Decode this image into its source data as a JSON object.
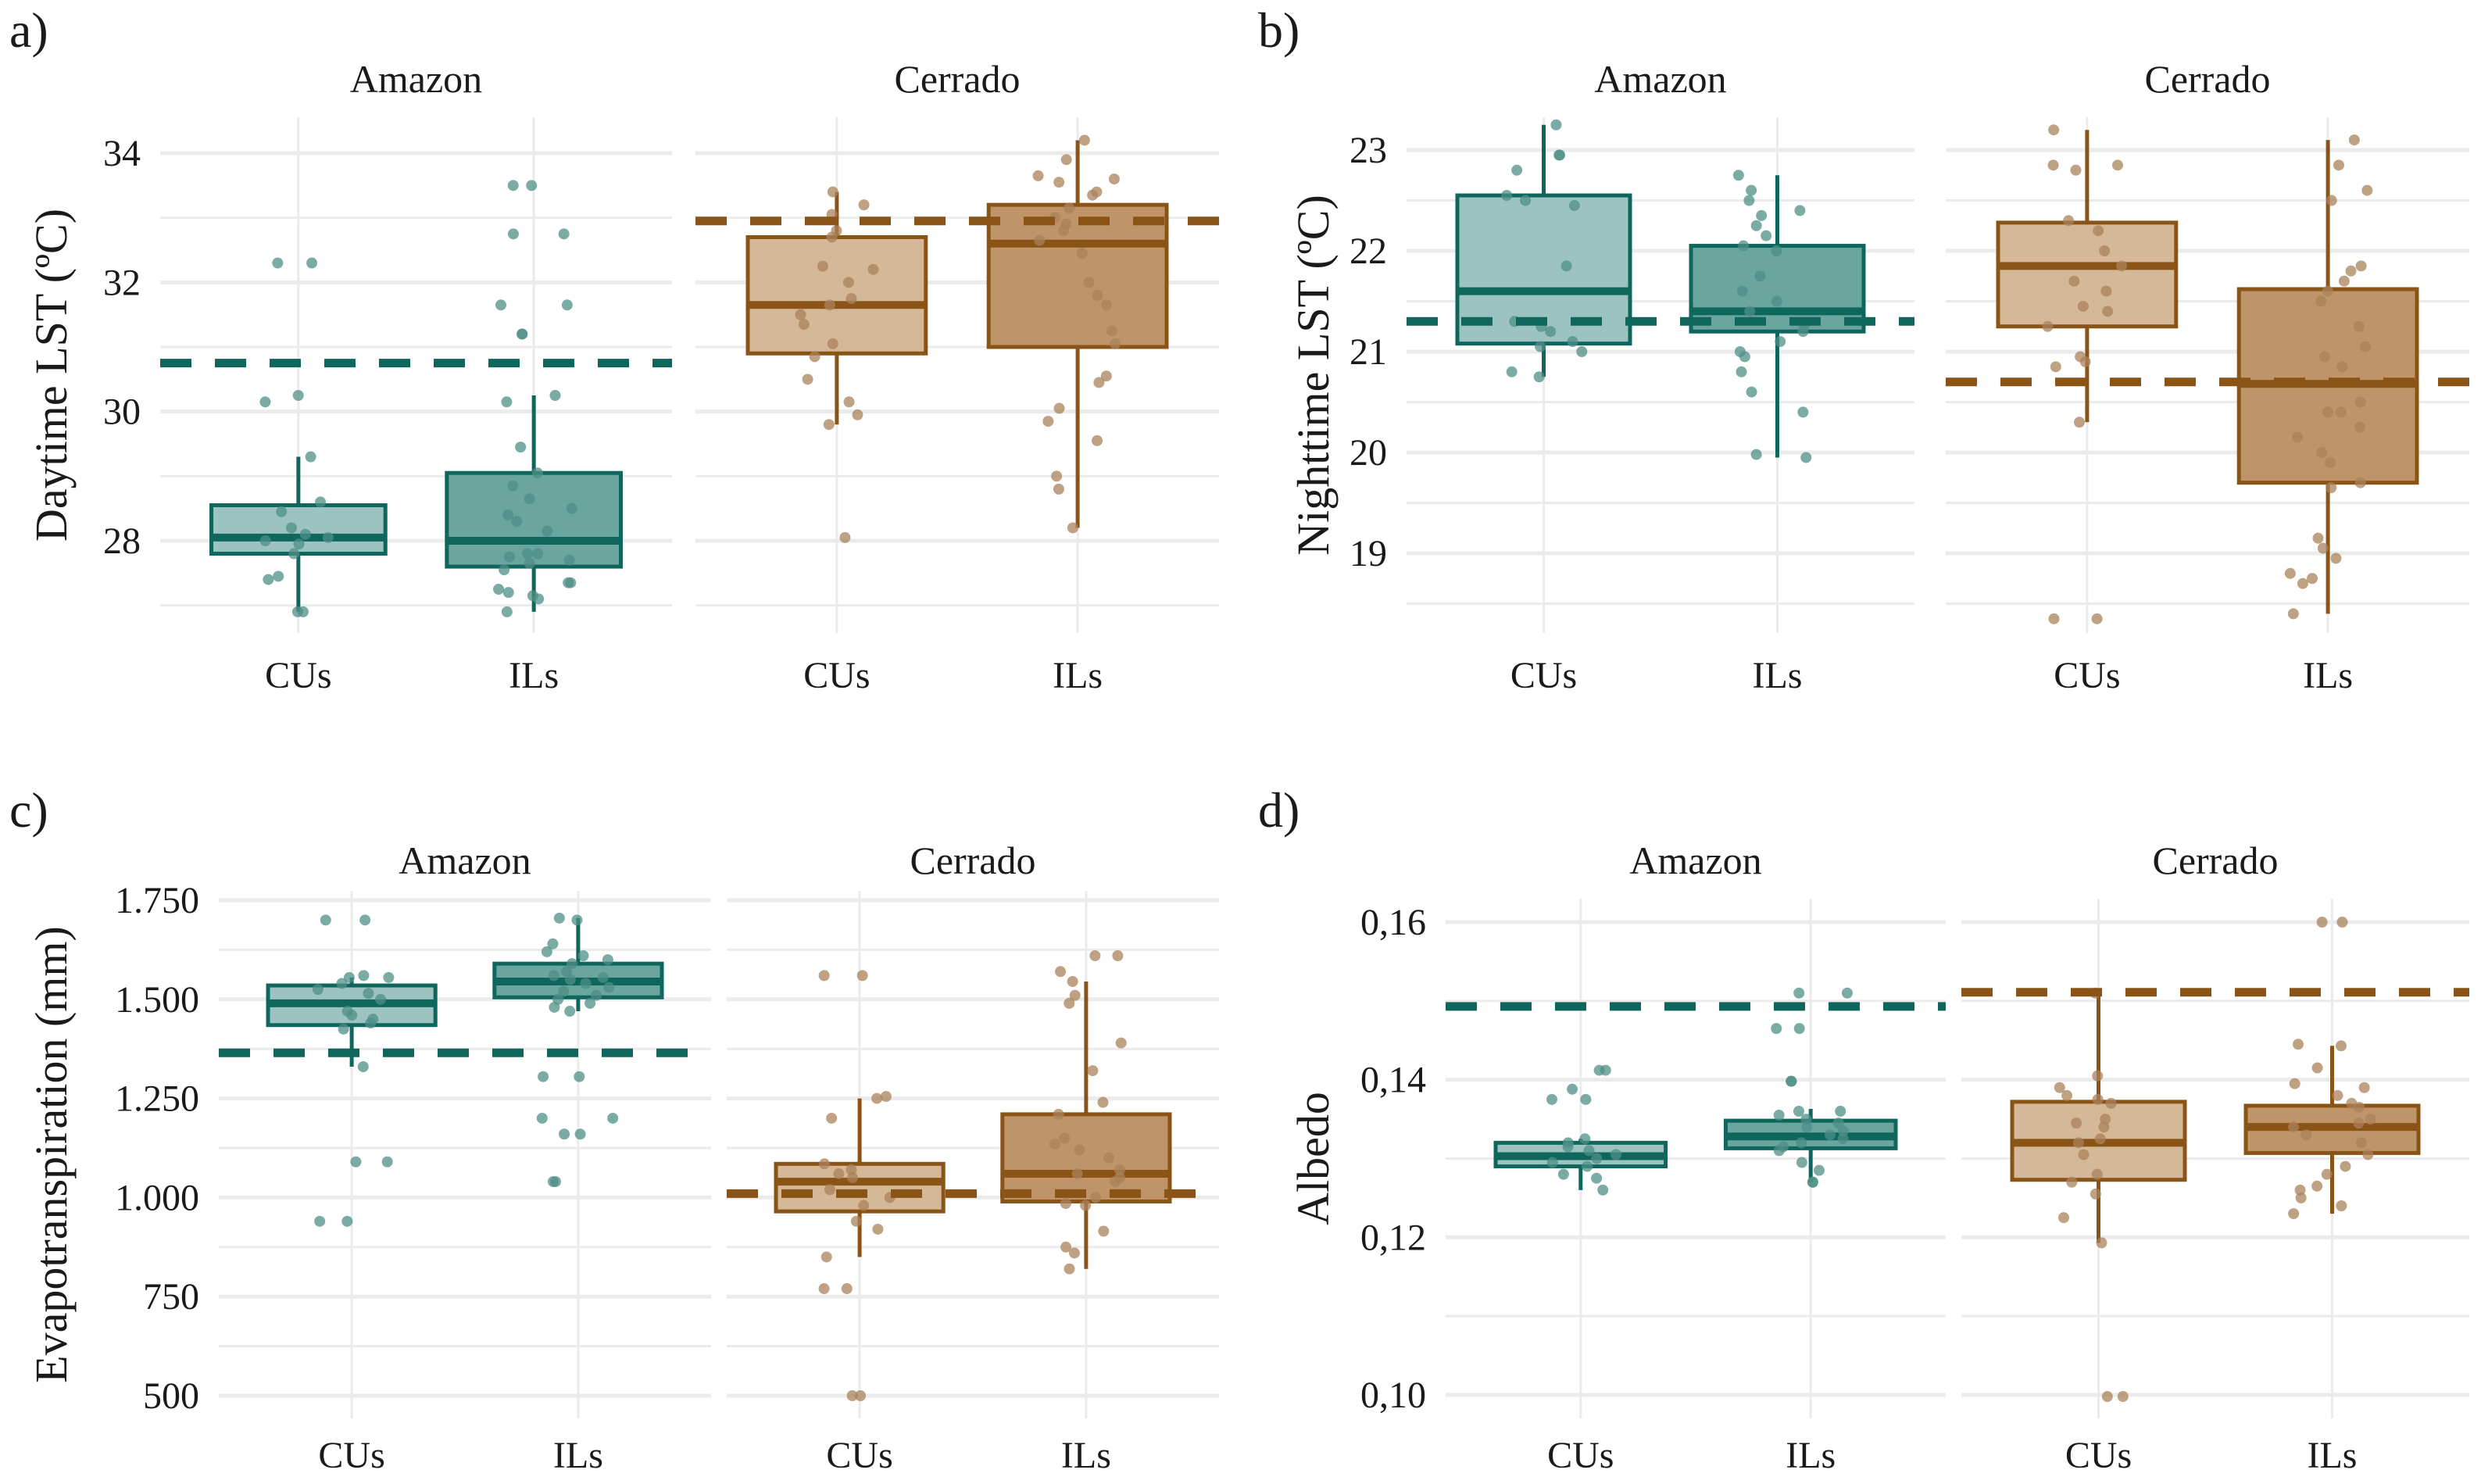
{
  "figure": {
    "colors": {
      "amazon_line": "#0f665c",
      "amazon_fill_cus": "#9cc3bf",
      "amazon_fill_ils": "#6aa59e",
      "amazon_point": "#4d8f87",
      "cerrado_line": "#8a5416",
      "cerrado_fill_cus": "#d5b897",
      "cerrado_fill_ils": "#bf9468",
      "cerrado_point": "#a9825a",
      "grid": "#ebebeb"
    }
  },
  "chart_data": [
    {
      "type": "box",
      "panel_label": "a)",
      "ylabel": "Daytime LST (ºC)",
      "xlabel": "",
      "ylim": [
        26.6,
        34.6
      ],
      "yticks": [
        28,
        30,
        32,
        34
      ],
      "ytick_labels": [
        "28",
        "30",
        "32",
        "34"
      ],
      "minor_yticks": [
        27,
        29,
        31,
        33
      ],
      "grid": true,
      "facets": [
        {
          "title": "Amazon",
          "reference_line": 30.75,
          "groups": [
            {
              "category": "CUs",
              "lower_whisker": 26.9,
              "q1": 27.8,
              "median": 28.05,
              "q3": 28.55,
              "upper_whisker": 29.3,
              "outliers": [
                30.15,
                30.25,
                32.3,
                32.3
              ],
              "points": [
                26.9,
                26.9,
                27.4,
                27.45,
                27.8,
                27.95,
                28.0,
                28.05,
                28.1,
                28.2,
                28.45,
                28.6,
                29.3,
                30.15,
                30.25,
                32.3,
                32.3
              ]
            },
            {
              "category": "ILs",
              "lower_whisker": 26.9,
              "q1": 27.6,
              "median": 28.0,
              "q3": 29.05,
              "upper_whisker": 30.25,
              "outliers": [
                31.2,
                31.2,
                31.65,
                31.65,
                32.75,
                32.75,
                33.5,
                33.5
              ],
              "points": [
                26.9,
                27.1,
                27.15,
                27.2,
                27.25,
                27.35,
                27.35,
                27.55,
                27.65,
                27.7,
                27.75,
                27.8,
                27.8,
                28.15,
                28.3,
                28.4,
                28.5,
                28.65,
                28.85,
                29.05,
                29.45,
                30.15,
                30.25,
                31.2,
                31.2,
                31.65,
                31.65,
                32.75,
                32.75,
                33.5,
                33.5
              ]
            }
          ]
        },
        {
          "title": "Cerrado",
          "reference_line": 32.95,
          "groups": [
            {
              "category": "CUs",
              "lower_whisker": 29.8,
              "q1": 30.9,
              "median": 31.65,
              "q3": 32.7,
              "upper_whisker": 33.4,
              "outliers": [
                28.05
              ],
              "points": [
                28.05,
                29.8,
                29.95,
                30.15,
                30.5,
                30.85,
                31.05,
                31.35,
                31.5,
                31.65,
                31.75,
                32.0,
                32.2,
                32.25,
                32.7,
                32.8,
                33.05,
                33.2,
                33.4
              ]
            },
            {
              "category": "ILs",
              "lower_whisker": 28.2,
              "q1": 31.0,
              "median": 32.6,
              "q3": 33.2,
              "upper_whisker": 34.2,
              "outliers": [],
              "points": [
                28.2,
                28.8,
                29.0,
                29.55,
                29.85,
                30.05,
                30.45,
                30.55,
                31.05,
                31.25,
                31.65,
                31.8,
                32.0,
                32.45,
                32.65,
                32.8,
                32.9,
                33.0,
                33.15,
                33.35,
                33.4,
                33.55,
                33.6,
                33.65,
                33.9,
                34.2
              ]
            }
          ]
        }
      ]
    },
    {
      "type": "box",
      "panel_label": "b)",
      "ylabel": "Nighttime LST (ºC)",
      "xlabel": "",
      "ylim": [
        18.2,
        23.4
      ],
      "yticks": [
        19,
        20,
        21,
        22,
        23
      ],
      "ytick_labels": [
        "19",
        "20",
        "21",
        "22",
        "23"
      ],
      "minor_yticks": [
        18.5,
        19.5,
        20.5,
        21.5,
        22.5
      ],
      "grid": true,
      "facets": [
        {
          "title": "Amazon",
          "reference_line": 21.3,
          "groups": [
            {
              "category": "CUs",
              "lower_whisker": 20.75,
              "q1": 21.08,
              "median": 21.6,
              "q3": 22.55,
              "upper_whisker": 23.25,
              "outliers": [],
              "points": [
                20.75,
                20.8,
                21.0,
                21.05,
                21.1,
                21.2,
                21.25,
                21.3,
                21.85,
                22.45,
                22.5,
                22.55,
                22.8,
                22.95,
                22.95,
                23.25
              ]
            },
            {
              "category": "ILs",
              "lower_whisker": 19.95,
              "q1": 21.2,
              "median": 21.4,
              "q3": 22.05,
              "upper_whisker": 22.75,
              "outliers": [],
              "points": [
                19.95,
                19.98,
                20.4,
                20.6,
                20.8,
                20.95,
                21.0,
                21.1,
                21.2,
                21.25,
                21.4,
                21.5,
                21.6,
                21.75,
                22.0,
                22.05,
                22.15,
                22.25,
                22.35,
                22.4,
                22.5,
                22.6,
                22.75
              ]
            }
          ]
        },
        {
          "title": "Cerrado",
          "reference_line": 20.7,
          "groups": [
            {
              "category": "CUs",
              "lower_whisker": 20.3,
              "q1": 21.25,
              "median": 21.85,
              "q3": 22.28,
              "upper_whisker": 23.2,
              "outliers": [
                18.35,
                18.35
              ],
              "points": [
                18.35,
                18.35,
                20.3,
                20.85,
                20.9,
                20.95,
                21.25,
                21.4,
                21.45,
                21.6,
                21.7,
                21.85,
                22.0,
                22.2,
                22.3,
                22.8,
                22.85,
                22.85,
                23.2
              ]
            },
            {
              "category": "ILs",
              "lower_whisker": 18.4,
              "q1": 19.7,
              "median": 20.68,
              "q3": 21.62,
              "upper_whisker": 23.1,
              "outliers": [],
              "points": [
                18.4,
                18.7,
                18.75,
                18.8,
                18.95,
                19.05,
                19.15,
                19.65,
                19.7,
                19.9,
                20.0,
                20.15,
                20.25,
                20.4,
                20.4,
                20.5,
                20.85,
                20.95,
                21.05,
                21.25,
                21.5,
                21.6,
                21.7,
                21.8,
                21.85,
                22.5,
                22.6,
                22.85,
                23.1
              ]
            }
          ]
        }
      ]
    },
    {
      "type": "box",
      "panel_label": "c)",
      "ylabel": "Evapotranspiration (mm)",
      "xlabel": "",
      "ylim": [
        450,
        1800
      ],
      "yticks": [
        500,
        750,
        1000,
        1250,
        1500,
        1750
      ],
      "ytick_labels": [
        "500",
        "750",
        "1.000",
        "1.250",
        "1.500",
        "1.750"
      ],
      "minor_yticks": [
        625,
        875,
        1125,
        1375,
        1625
      ],
      "grid": true,
      "facets": [
        {
          "title": "Amazon",
          "reference_line": 1365,
          "groups": [
            {
              "category": "CUs",
              "lower_whisker": 1330,
              "q1": 1435,
              "median": 1490,
              "q3": 1535,
              "upper_whisker": 1555,
              "outliers": [
                940,
                940,
                1090,
                1090,
                1700,
                1700
              ],
              "points": [
                940,
                940,
                1090,
                1090,
                1330,
                1425,
                1440,
                1450,
                1460,
                1470,
                1500,
                1515,
                1525,
                1540,
                1555,
                1555,
                1560,
                1700,
                1700
              ]
            },
            {
              "category": "ILs",
              "lower_whisker": 1470,
              "q1": 1505,
              "median": 1545,
              "q3": 1590,
              "upper_whisker": 1705,
              "outliers": [
                1040,
                1040,
                1160,
                1160,
                1200,
                1200,
                1305,
                1305
              ],
              "points": [
                1040,
                1040,
                1160,
                1160,
                1200,
                1200,
                1305,
                1305,
                1470,
                1480,
                1490,
                1500,
                1510,
                1520,
                1530,
                1540,
                1550,
                1555,
                1560,
                1570,
                1590,
                1600,
                1610,
                1620,
                1640,
                1700,
                1705
              ]
            }
          ]
        },
        {
          "title": "Cerrado",
          "reference_line": 1010,
          "groups": [
            {
              "category": "CUs",
              "lower_whisker": 850,
              "q1": 965,
              "median": 1040,
              "q3": 1085,
              "upper_whisker": 1250,
              "outliers": [
                500,
                500,
                770,
                770,
                1560,
                1560
              ],
              "points": [
                500,
                500,
                770,
                770,
                850,
                920,
                940,
                980,
                1000,
                1020,
                1050,
                1060,
                1070,
                1085,
                1200,
                1250,
                1255,
                1560,
                1560
              ]
            },
            {
              "category": "ILs",
              "lower_whisker": 820,
              "q1": 990,
              "median": 1060,
              "q3": 1210,
              "upper_whisker": 1545,
              "outliers": [
                1610,
                1610
              ],
              "points": [
                820,
                860,
                875,
                915,
                980,
                985,
                1000,
                1040,
                1050,
                1060,
                1070,
                1100,
                1120,
                1135,
                1150,
                1210,
                1240,
                1320,
                1390,
                1490,
                1510,
                1545,
                1570,
                1610,
                1610
              ]
            }
          ]
        }
      ]
    },
    {
      "type": "box",
      "panel_label": "d)",
      "ylabel": "Albedo",
      "xlabel": "",
      "ylim": [
        0.098,
        0.1625
      ],
      "yticks": [
        0.1,
        0.12,
        0.14,
        0.16
      ],
      "ytick_labels": [
        "0,10",
        "0,12",
        "0,14",
        "0,16"
      ],
      "minor_yticks": [
        0.11,
        0.13,
        0.15
      ],
      "grid": true,
      "facets": [
        {
          "title": "Amazon",
          "reference_line": 0.1493,
          "groups": [
            {
              "category": "CUs",
              "lower_whisker": 0.126,
              "q1": 0.129,
              "median": 0.1303,
              "q3": 0.132,
              "upper_whisker": 0.1325,
              "outliers": [
                0.1375,
                0.1375,
                0.1388,
                0.1412,
                0.1412
              ],
              "points": [
                0.126,
                0.1275,
                0.128,
                0.129,
                0.1295,
                0.13,
                0.1305,
                0.131,
                0.1315,
                0.132,
                0.1325,
                0.1375,
                0.1375,
                0.1388,
                0.1412,
                0.1412
              ]
            },
            {
              "category": "ILs",
              "lower_whisker": 0.127,
              "q1": 0.1313,
              "median": 0.1328,
              "q3": 0.1348,
              "upper_whisker": 0.1363,
              "outliers": [
                0.1398,
                0.1398,
                0.1465,
                0.1465,
                0.151,
                0.151
              ],
              "points": [
                0.127,
                0.127,
                0.1285,
                0.1295,
                0.131,
                0.1315,
                0.132,
                0.1325,
                0.133,
                0.1335,
                0.134,
                0.1345,
                0.135,
                0.1355,
                0.136,
                0.136,
                0.1398,
                0.1398,
                0.1465,
                0.1465,
                0.151,
                0.151
              ]
            }
          ]
        },
        {
          "title": "Cerrado",
          "reference_line": 0.1511,
          "groups": [
            {
              "category": "CUs",
              "lower_whisker": 0.1193,
              "q1": 0.1273,
              "median": 0.132,
              "q3": 0.1372,
              "upper_whisker": 0.151,
              "outliers": [
                0.0998,
                0.0998
              ],
              "points": [
                0.0998,
                0.0998,
                0.1193,
                0.1225,
                0.1255,
                0.127,
                0.128,
                0.1305,
                0.132,
                0.1325,
                0.134,
                0.1345,
                0.135,
                0.137,
                0.1375,
                0.138,
                0.139,
                0.1405,
                0.151
              ]
            },
            {
              "category": "ILs",
              "lower_whisker": 0.123,
              "q1": 0.1307,
              "median": 0.134,
              "q3": 0.1367,
              "upper_whisker": 0.1443,
              "outliers": [
                0.16,
                0.16
              ],
              "points": [
                0.123,
                0.124,
                0.125,
                0.126,
                0.1265,
                0.128,
                0.129,
                0.1305,
                0.132,
                0.133,
                0.134,
                0.1345,
                0.135,
                0.1365,
                0.137,
                0.138,
                0.139,
                0.1395,
                0.1415,
                0.1443,
                0.1445,
                0.16,
                0.16
              ]
            }
          ]
        }
      ]
    }
  ]
}
